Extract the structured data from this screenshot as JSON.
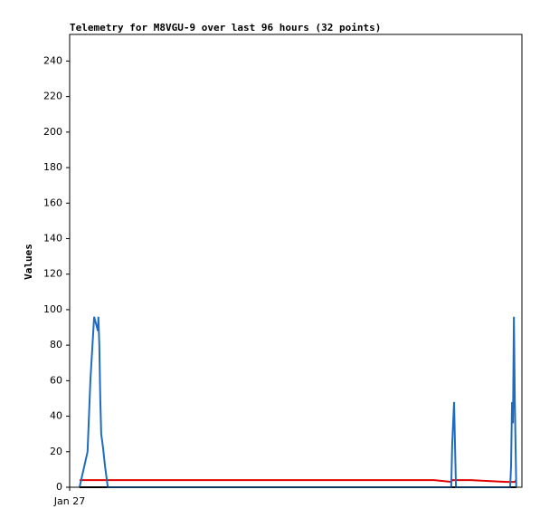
{
  "chart_data": {
    "type": "line",
    "title": "Telemetry for M8VGU-9 over last 96 hours (32 points)",
    "y_label": "Values",
    "x": [
      2.1,
      3.8,
      4.4,
      5.2,
      5.6,
      5.8,
      6.0,
      6.1,
      6.3,
      6.5,
      6.7,
      7.1,
      7.5,
      8.1,
      23.6,
      42.8,
      62.0,
      77.4,
      81.0,
      81.2,
      81.6,
      81.8,
      82.0,
      85.1,
      92.7,
      93.5,
      93.7,
      93.9,
      94.1,
      94.3,
      94.5,
      94.8
    ],
    "series": [
      {
        "color": "#000000",
        "values": [
          0,
          0,
          0,
          0,
          0,
          0,
          0,
          0,
          0,
          0,
          0,
          0,
          0,
          0,
          0,
          0,
          0,
          0,
          0,
          0,
          0,
          0,
          0,
          0,
          0,
          0,
          0,
          0,
          0,
          0,
          0,
          0
        ]
      },
      {
        "color": "#e00000",
        "values": [
          4,
          4,
          4,
          4,
          4,
          4,
          4,
          4,
          4,
          4,
          4,
          4,
          4,
          4,
          4,
          4,
          4,
          4,
          3,
          4,
          4,
          4,
          4,
          4,
          3,
          3,
          3,
          3,
          3,
          3,
          3,
          4
        ]
      },
      {
        "color": "#1e6cc0",
        "values": [
          0,
          20,
          60,
          96,
          92,
          90,
          88,
          96,
          80,
          50,
          30,
          22,
          12,
          0,
          0,
          0,
          0,
          0,
          0,
          24,
          48,
          24,
          0,
          0,
          0,
          0,
          12,
          48,
          36,
          96,
          48,
          0
        ]
      }
    ],
    "xlim": [
      0,
      96
    ],
    "xticks": [
      {
        "value": 0,
        "label": "Jan 27"
      }
    ],
    "ylim": [
      0,
      255
    ],
    "yticks": [
      0,
      20,
      40,
      60,
      80,
      100,
      120,
      140,
      160,
      180,
      200,
      220,
      240
    ]
  }
}
